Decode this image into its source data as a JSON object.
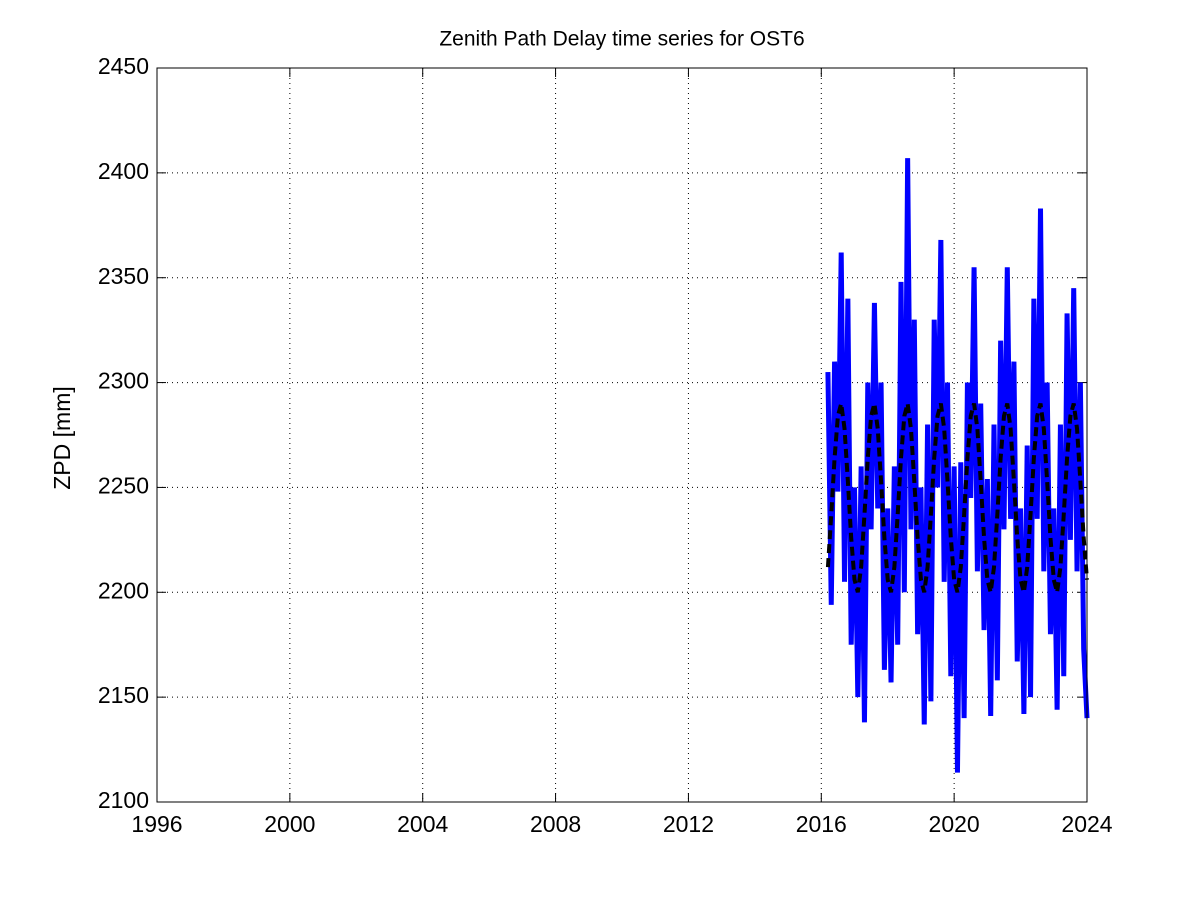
{
  "chart_data": {
    "type": "line",
    "title": "Zenith Path Delay time series for OST6",
    "y_label": "ZPD [mm]",
    "x": [
      2016.2,
      2016.3,
      2016.4,
      2016.5,
      2016.6,
      2016.7,
      2016.8,
      2016.9,
      2017,
      2017.1,
      2017.2,
      2017.3,
      2017.4,
      2017.5,
      2017.6,
      2017.7,
      2017.8,
      2017.9,
      2018,
      2018.1,
      2018.2,
      2018.3,
      2018.4,
      2018.5,
      2018.6,
      2018.7,
      2018.8,
      2018.9,
      2019,
      2019.1,
      2019.2,
      2019.3,
      2019.4,
      2019.5,
      2019.6,
      2019.7,
      2019.8,
      2019.9,
      2020,
      2020.1,
      2020.2,
      2020.3,
      2020.4,
      2020.5,
      2020.6,
      2020.7,
      2020.8,
      2020.9,
      2021,
      2021.1,
      2021.2,
      2021.3,
      2021.4,
      2021.5,
      2021.6,
      2021.7,
      2021.8,
      2021.9,
      2022,
      2022.1,
      2022.2,
      2022.3,
      2022.4,
      2022.5,
      2022.6,
      2022.7,
      2022.8,
      2022.9,
      2023,
      2023.1,
      2023.2,
      2023.3,
      2023.4,
      2023.5,
      2023.6,
      2023.7,
      2023.8,
      2023.9,
      2024
    ],
    "series": [
      {
        "color": "#0000ff",
        "line_style": "solid",
        "values": [
          2305,
          2194,
          2310,
          2248,
          2362,
          2205,
          2340,
          2175,
          2250,
          2150,
          2260,
          2138,
          2300,
          2230,
          2338,
          2240,
          2300,
          2163,
          2240,
          2157,
          2260,
          2175,
          2348,
          2200,
          2407,
          2230,
          2330,
          2180,
          2250,
          2137,
          2280,
          2148,
          2330,
          2250,
          2368,
          2205,
          2300,
          2160,
          2260,
          2114,
          2262,
          2140,
          2300,
          2245,
          2355,
          2210,
          2290,
          2182,
          2254,
          2141,
          2280,
          2158,
          2320,
          2230,
          2355,
          2235,
          2310,
          2167,
          2240,
          2142,
          2270,
          2150,
          2340,
          2235,
          2383,
          2210,
          2300,
          2180,
          2240,
          2144,
          2280,
          2160,
          2333,
          2225,
          2345,
          2210,
          2300,
          2173,
          2140
        ]
      },
      {
        "color": "#000000",
        "line_style": "dashed",
        "values": [
          2212,
          2237,
          2264,
          2284,
          2290,
          2278,
          2253,
          2226,
          2206,
          2200,
          2212,
          2237,
          2264,
          2284,
          2290,
          2278,
          2253,
          2226,
          2206,
          2200,
          2212,
          2237,
          2264,
          2284,
          2290,
          2278,
          2253,
          2226,
          2206,
          2200,
          2212,
          2237,
          2264,
          2284,
          2290,
          2278,
          2253,
          2226,
          2206,
          2200,
          2212,
          2237,
          2264,
          2284,
          2290,
          2278,
          2253,
          2226,
          2206,
          2200,
          2212,
          2237,
          2264,
          2284,
          2290,
          2278,
          2253,
          2226,
          2206,
          2200,
          2212,
          2237,
          2264,
          2284,
          2290,
          2278,
          2253,
          2226,
          2206,
          2200,
          2212,
          2237,
          2264,
          2284,
          2290,
          2278,
          2253,
          2226,
          2206
        ]
      }
    ],
    "xlim": [
      1996,
      2024
    ],
    "xticks": [
      1996,
      2000,
      2004,
      2008,
      2012,
      2016,
      2020,
      2024
    ],
    "ylim": [
      2100,
      2450
    ],
    "yticks": [
      2100,
      2150,
      2200,
      2250,
      2300,
      2350,
      2400,
      2450
    ],
    "grid": true
  }
}
